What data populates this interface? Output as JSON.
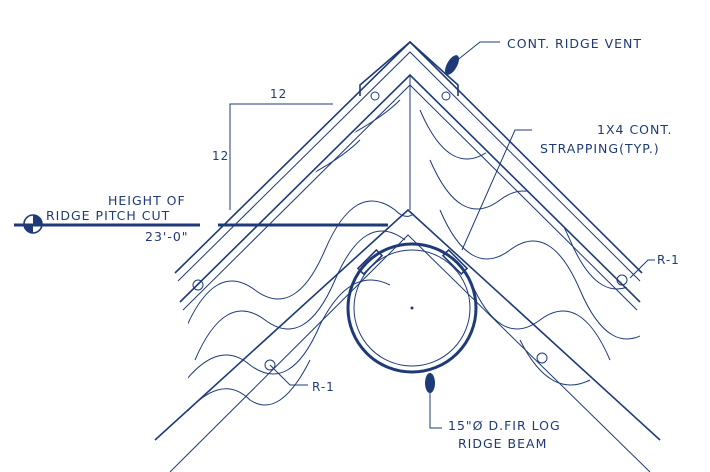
{
  "labels": {
    "ridge_vent": "CONT. RIDGE VENT",
    "strapping_line1": "1X4 CONT.",
    "strapping_line2": "STRAPPING(TYP.)",
    "height_line1": "HEIGHT OF",
    "height_line2": "RIDGE PITCH CUT",
    "elevation": "23'-0\"",
    "pitch_run": "12",
    "pitch_rise": "12",
    "ref_right": "R-1",
    "ref_left": "R-1",
    "beam_line1": "15\"Ø D.FIR LOG",
    "beam_line2": "RIDGE BEAM"
  },
  "colors": {
    "ink": "#1f3a78",
    "paper": "#ffffff"
  }
}
